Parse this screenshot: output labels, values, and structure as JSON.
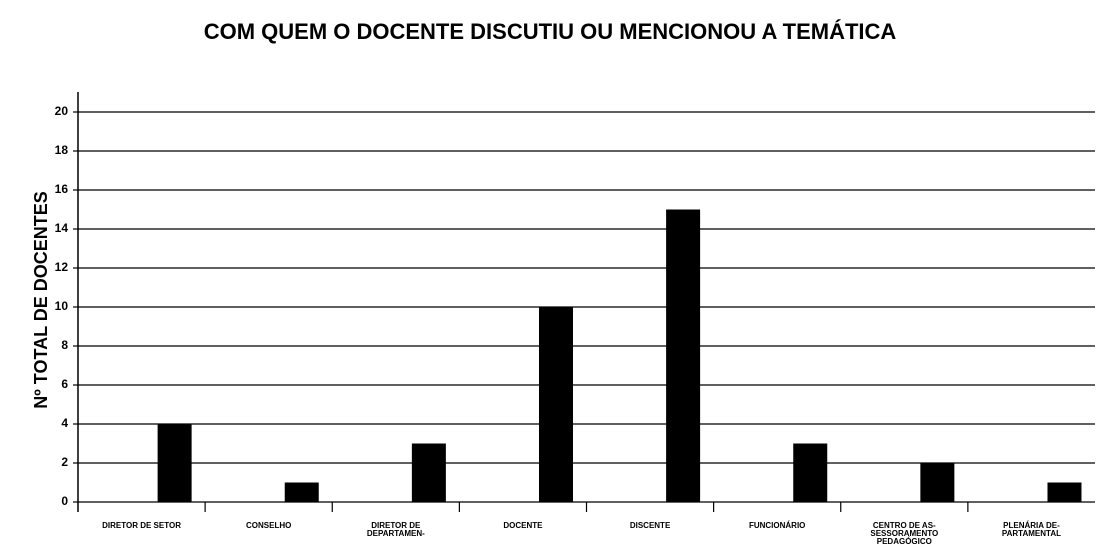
{
  "chart_data": {
    "type": "bar",
    "title": "COM QUEM O DOCENTE DISCUTIU OU MENCIONOU A TEMÁTICA",
    "y_label": "Nº TOTAL DE DOCENTES",
    "categories": [
      "DIRETOR DE SETOR",
      "CONSELHO",
      "DIRETOR DE\nDEPARTAMEN-",
      "DOCENTE",
      "DISCENTE",
      "FUNCIONÁRIO",
      "CENTRO DE AS-\nSESSORAMENTO\nPEDAGÓGICO",
      "PLENÁRIA DE-\nPARTAMENTAL"
    ],
    "values": [
      4,
      1,
      3,
      10,
      15,
      3,
      2,
      1
    ],
    "color": "#000000",
    "ylim": [
      0,
      20
    ],
    "yticks": [
      0,
      2,
      4,
      6,
      8,
      10,
      12,
      14,
      16,
      18,
      20
    ],
    "grid": true
  }
}
